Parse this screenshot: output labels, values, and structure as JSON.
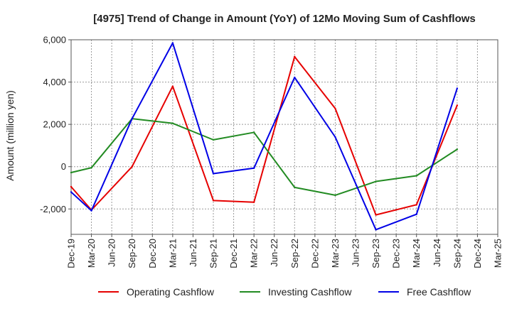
{
  "chart_data": {
    "type": "line",
    "title": "[4975]  Trend of Change in Amount (YoY) of 12Mo Moving Sum of Cashflows",
    "xlabel": "",
    "ylabel": "Amount (million yen)",
    "ylim": [
      -3200,
      6000
    ],
    "yticks": [
      -2000,
      0,
      2000,
      4000,
      6000
    ],
    "ytick_labels": [
      "-2,000",
      "0",
      "2,000",
      "4,000",
      "6,000"
    ],
    "grid": true,
    "legend_position": "bottom",
    "categories": [
      "Dec-19",
      "Mar-20",
      "Jun-20",
      "Sep-20",
      "Dec-20",
      "Mar-21",
      "Jun-21",
      "Sep-21",
      "Dec-21",
      "Mar-22",
      "Jun-22",
      "Sep-22",
      "Dec-22",
      "Mar-23",
      "Jun-23",
      "Sep-23",
      "Dec-23",
      "Mar-24",
      "Jun-24",
      "Sep-24",
      "Dec-24",
      "Mar-25"
    ],
    "series": [
      {
        "name": "Operating Cashflow",
        "color": "#e60000",
        "values": [
          -950,
          -2050,
          null,
          0,
          null,
          3800,
          null,
          -1600,
          null,
          -1680,
          null,
          5200,
          null,
          2750,
          null,
          -2280,
          null,
          -1800,
          null,
          2900,
          null,
          null
        ]
      },
      {
        "name": "Investing Cashflow",
        "color": "#228b22",
        "values": [
          -280,
          -50,
          null,
          2270,
          null,
          2050,
          null,
          1270,
          null,
          1620,
          null,
          -980,
          null,
          -1350,
          null,
          -700,
          null,
          -430,
          null,
          820,
          null,
          null
        ]
      },
      {
        "name": "Free Cashflow",
        "color": "#0000e6",
        "values": [
          -1200,
          -2080,
          null,
          2270,
          null,
          5850,
          null,
          -330,
          null,
          -70,
          null,
          4220,
          null,
          1400,
          null,
          -2980,
          null,
          -2250,
          null,
          3700,
          null,
          null
        ]
      }
    ]
  }
}
